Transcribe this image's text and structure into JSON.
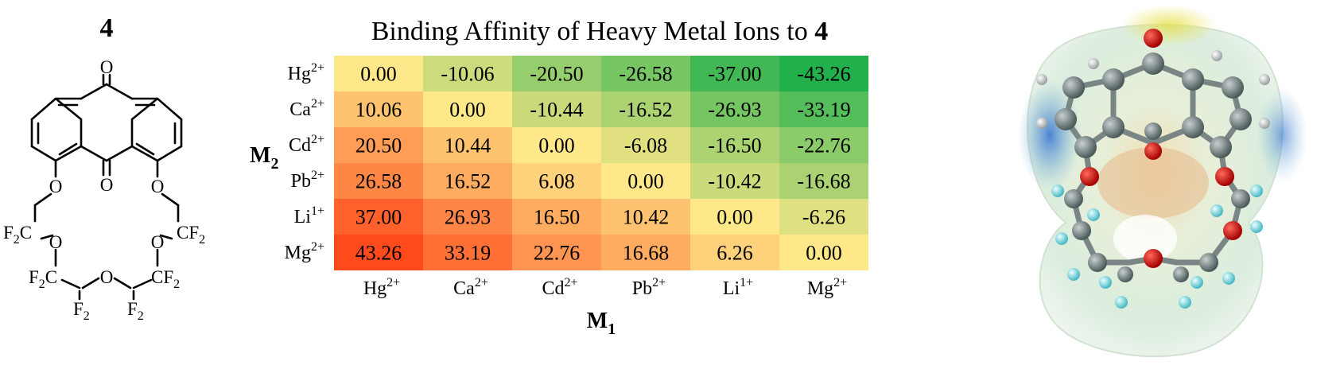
{
  "compound_label": "4",
  "structure": {
    "atoms": {
      "o_top": "O",
      "o_mid": "O",
      "o_ether_left": "O",
      "o_ether_right": "O",
      "cf2_a": "F",
      "cf2_a_sub": "2",
      "cf2_a_c": "C",
      "cf2_b_c": "CF",
      "cf2_b_sub": "2",
      "o_chain_left": "O",
      "o_chain_right": "O",
      "cf2_c": "F",
      "cf2_c_sub": "2",
      "cf2_c_c": "C",
      "cf2_d_c": "CF",
      "cf2_d_sub": "2",
      "c_left": "C",
      "c_right": "C",
      "o_bottom": "O",
      "f2_left": "F",
      "f2_left_sub": "2",
      "f2_right": "F",
      "f2_right_sub": "2"
    }
  },
  "chart_data": {
    "type": "heatmap",
    "title": "Binding Affinity of Heavy Metal Ions to ",
    "title_bold": "4",
    "xlabel": "M",
    "xlabel_sub": "1",
    "ylabel": "M",
    "ylabel_sub": "2",
    "x_categories": [
      {
        "base": "Hg",
        "sup": "2+"
      },
      {
        "base": "Ca",
        "sup": "2+"
      },
      {
        "base": "Cd",
        "sup": "2+"
      },
      {
        "base": "Pb",
        "sup": "2+"
      },
      {
        "base": "Li",
        "sup": "1+"
      },
      {
        "base": "Mg",
        "sup": "2+"
      }
    ],
    "y_categories": [
      {
        "base": "Hg",
        "sup": "2+"
      },
      {
        "base": "Ca",
        "sup": "2+"
      },
      {
        "base": "Cd",
        "sup": "2+"
      },
      {
        "base": "Pb",
        "sup": "2+"
      },
      {
        "base": "Li",
        "sup": "1+"
      },
      {
        "base": "Mg",
        "sup": "2+"
      }
    ],
    "values": [
      [
        0.0,
        -10.06,
        -20.5,
        -26.58,
        -37.0,
        -43.26
      ],
      [
        10.06,
        0.0,
        -10.44,
        -16.52,
        -26.93,
        -33.19
      ],
      [
        20.5,
        10.44,
        0.0,
        -6.08,
        -16.5,
        -22.76
      ],
      [
        26.58,
        16.52,
        6.08,
        0.0,
        -10.42,
        -16.68
      ],
      [
        37.0,
        26.93,
        16.5,
        10.42,
        0.0,
        -6.26
      ],
      [
        43.26,
        33.19,
        22.76,
        16.68,
        6.26,
        0.0
      ]
    ],
    "value_labels": [
      [
        "0.00",
        "-10.06",
        "-20.50",
        "-26.58",
        "-37.00",
        "-43.26"
      ],
      [
        "10.06",
        "0.00",
        "-10.44",
        "-16.52",
        "-26.93",
        "-33.19"
      ],
      [
        "20.50",
        "10.44",
        "0.00",
        "-6.08",
        "-16.50",
        "-22.76"
      ],
      [
        "26.58",
        "16.52",
        "6.08",
        "0.00",
        "-10.42",
        "-16.68"
      ],
      [
        "37.00",
        "26.93",
        "16.50",
        "10.42",
        "0.00",
        "-6.26"
      ],
      [
        "43.26",
        "33.19",
        "22.76",
        "16.68",
        "6.26",
        "0.00"
      ]
    ],
    "color_scale": {
      "min": -43.26,
      "mid": 0,
      "max": 43.26,
      "colors": [
        "#22b04c",
        "#ffe88a",
        "#ff4a1c"
      ]
    },
    "colorbar": false,
    "grid": false
  }
}
